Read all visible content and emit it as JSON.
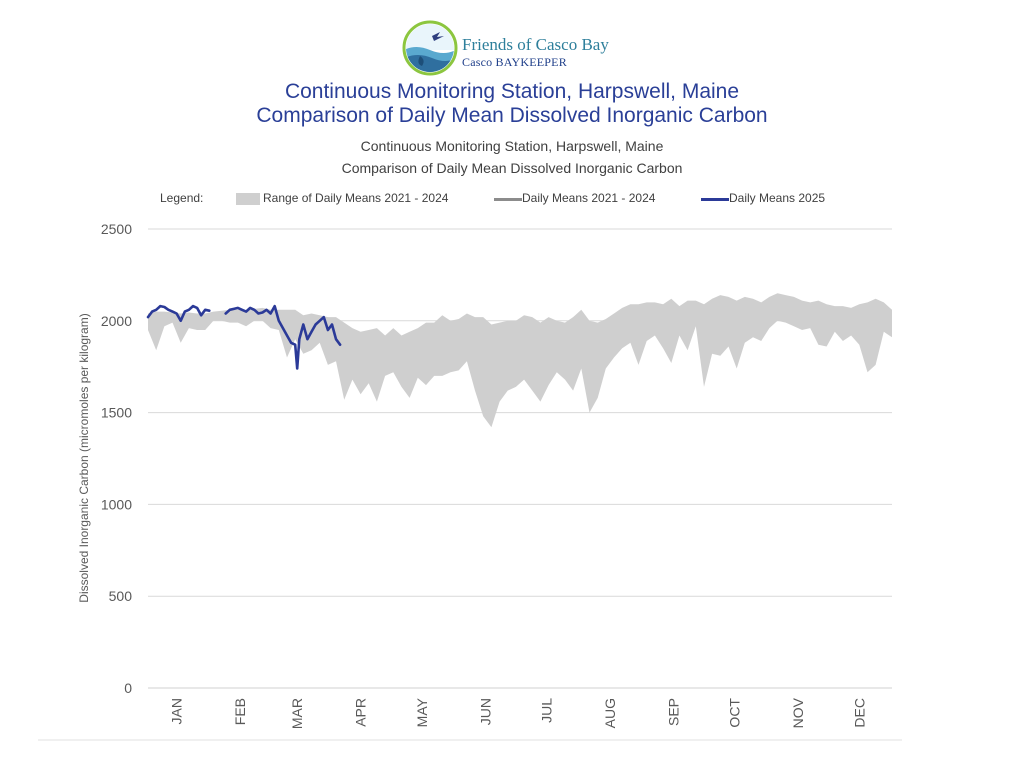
{
  "logo": {
    "org_name": "Friends of Casco Bay",
    "org_sub": "Casco BAYKEEPER"
  },
  "header": {
    "title_line1": "Continuous Monitoring Station, Harpswell, Maine",
    "title_line2": "Comparison of Daily Mean Dissolved Inorganic Carbon",
    "subtitle_line1": "Continuous Monitoring Station, Harpswell, Maine",
    "subtitle_line2": "Comparison of Daily Mean Dissolved Inorganic Carbon"
  },
  "colors": {
    "range_fill": "#cfcfcf",
    "mean_line": "#8c8c8c",
    "line_2025": "#2b3a98",
    "grid": "#d9d9d9",
    "title": "#2a3f97"
  },
  "chart_data": {
    "type": "area",
    "ylabel": "Dissolved Inorganic Carbon (micromoles per kilogram)",
    "xlabel": "",
    "ylim": [
      0,
      2500
    ],
    "yticks": [
      0,
      500,
      1000,
      1500,
      2000,
      2500
    ],
    "xlim": [
      "2025-01-01",
      "2025-12-31"
    ],
    "x_tick_labels": [
      "JAN",
      "FEB",
      "MAR",
      "APR",
      "MAY",
      "JUN",
      "JUL",
      "AUG",
      "SEP",
      "OCT",
      "NOV",
      "DEC"
    ],
    "x_tick_dates": [
      "2025-01-15",
      "2025-02-15",
      "2025-03-15",
      "2025-04-15",
      "2025-05-15",
      "2025-06-15",
      "2025-07-15",
      "2025-08-15",
      "2025-09-15",
      "2025-10-15",
      "2025-11-15",
      "2025-12-15"
    ],
    "grid": "horizontal",
    "legend": {
      "title": "Legend:",
      "placement": "top",
      "entries": [
        "Range of Daily Means 2021 - 2024",
        "Daily Means 2021 - 2024",
        "Daily Means 2025"
      ]
    },
    "series": [
      {
        "name": "Range of Daily Means 2021 - 2024",
        "kind": "band",
        "x": [
          "2025-01-01",
          "2025-01-05",
          "2025-01-09",
          "2025-01-13",
          "2025-01-17",
          "2025-01-21",
          "2025-01-25",
          "2025-01-29",
          "2025-02-02",
          "2025-02-06",
          "2025-02-10",
          "2025-02-14",
          "2025-02-18",
          "2025-02-22",
          "2025-02-26",
          "2025-03-02",
          "2025-03-06",
          "2025-03-10",
          "2025-03-14",
          "2025-03-18",
          "2025-03-22",
          "2025-03-26",
          "2025-03-30",
          "2025-04-03",
          "2025-04-07",
          "2025-04-11",
          "2025-04-15",
          "2025-04-19",
          "2025-04-23",
          "2025-04-27",
          "2025-05-01",
          "2025-05-05",
          "2025-05-09",
          "2025-05-13",
          "2025-05-17",
          "2025-05-21",
          "2025-05-25",
          "2025-05-29",
          "2025-06-02",
          "2025-06-06",
          "2025-06-10",
          "2025-06-14",
          "2025-06-18",
          "2025-06-22",
          "2025-06-26",
          "2025-06-30",
          "2025-07-04",
          "2025-07-08",
          "2025-07-12",
          "2025-07-16",
          "2025-07-20",
          "2025-07-24",
          "2025-07-28",
          "2025-08-01",
          "2025-08-05",
          "2025-08-09",
          "2025-08-13",
          "2025-08-17",
          "2025-08-21",
          "2025-08-25",
          "2025-08-29",
          "2025-09-02",
          "2025-09-06",
          "2025-09-10",
          "2025-09-14",
          "2025-09-18",
          "2025-09-22",
          "2025-09-26",
          "2025-09-30",
          "2025-10-04",
          "2025-10-08",
          "2025-10-12",
          "2025-10-16",
          "2025-10-20",
          "2025-10-24",
          "2025-10-28",
          "2025-11-01",
          "2025-11-05",
          "2025-11-09",
          "2025-11-13",
          "2025-11-17",
          "2025-11-21",
          "2025-11-25",
          "2025-11-29",
          "2025-12-03",
          "2025-12-07",
          "2025-12-11",
          "2025-12-15",
          "2025-12-19",
          "2025-12-23",
          "2025-12-27",
          "2025-12-31"
        ],
        "high": [
          2040,
          2050,
          2050,
          2045,
          2040,
          2045,
          2040,
          2040,
          2050,
          2055,
          2060,
          2060,
          2055,
          2065,
          2070,
          2060,
          2060,
          2060,
          2060,
          2030,
          2040,
          2030,
          2020,
          2020,
          1990,
          1960,
          1940,
          1950,
          1960,
          1920,
          1960,
          1920,
          1940,
          1960,
          1990,
          1990,
          2030,
          2000,
          2010,
          2040,
          2020,
          2020,
          1980,
          1990,
          2000,
          2000,
          2030,
          2020,
          1990,
          2020,
          2000,
          1990,
          2020,
          2060,
          2000,
          1990,
          2010,
          2040,
          2070,
          2090,
          2090,
          2100,
          2100,
          2090,
          2120,
          2080,
          2110,
          2110,
          2090,
          2120,
          2140,
          2130,
          2110,
          2130,
          2120,
          2100,
          2130,
          2150,
          2140,
          2130,
          2110,
          2100,
          2110,
          2090,
          2080,
          2080,
          2070,
          2090,
          2100,
          2120,
          2100,
          2060
        ],
        "low": [
          1950,
          1840,
          1970,
          1990,
          1880,
          1960,
          1950,
          1950,
          2000,
          2000,
          1990,
          1990,
          1970,
          2000,
          2000,
          1960,
          1950,
          1800,
          1900,
          1820,
          1840,
          1880,
          1760,
          1780,
          1570,
          1680,
          1600,
          1660,
          1560,
          1700,
          1720,
          1640,
          1580,
          1690,
          1650,
          1700,
          1700,
          1720,
          1730,
          1780,
          1620,
          1480,
          1420,
          1560,
          1620,
          1640,
          1680,
          1620,
          1560,
          1650,
          1720,
          1680,
          1620,
          1740,
          1500,
          1580,
          1740,
          1800,
          1850,
          1880,
          1760,
          1890,
          1920,
          1850,
          1770,
          1920,
          1840,
          1970,
          1640,
          1820,
          1810,
          1860,
          1740,
          1880,
          1910,
          1890,
          1960,
          2000,
          1990,
          1970,
          1950,
          1960,
          1870,
          1860,
          1940,
          1890,
          1920,
          1870,
          1720,
          1760,
          1940,
          1910
        ]
      },
      {
        "name": "Daily Means 2021 - 2024",
        "kind": "line",
        "x": [
          "2025-01-01",
          "2025-01-05",
          "2025-01-09",
          "2025-01-13",
          "2025-01-17",
          "2025-01-21",
          "2025-01-25",
          "2025-01-29",
          "2025-02-02",
          "2025-02-06",
          "2025-02-10",
          "2025-02-14",
          "2025-02-18",
          "2025-02-22",
          "2025-02-26",
          "2025-03-02",
          "2025-03-06",
          "2025-03-10",
          "2025-03-14",
          "2025-03-18",
          "2025-03-22",
          "2025-03-26",
          "2025-03-30",
          "2025-04-03",
          "2025-04-07",
          "2025-04-11",
          "2025-04-15",
          "2025-04-19",
          "2025-04-23",
          "2025-04-27",
          "2025-05-01",
          "2025-05-05",
          "2025-05-09",
          "2025-05-13",
          "2025-05-17",
          "2025-05-21",
          "2025-05-25",
          "2025-05-29",
          "2025-06-02",
          "2025-06-06",
          "2025-06-10",
          "2025-06-14",
          "2025-06-18",
          "2025-06-22",
          "2025-06-26",
          "2025-06-30",
          "2025-07-04",
          "2025-07-08",
          "2025-07-12",
          "2025-07-16",
          "2025-07-20",
          "2025-07-24",
          "2025-07-28",
          "2025-08-01",
          "2025-08-05",
          "2025-08-09",
          "2025-08-13",
          "2025-08-17",
          "2025-08-21",
          "2025-08-25",
          "2025-08-29",
          "2025-09-02",
          "2025-09-06",
          "2025-09-10",
          "2025-09-14",
          "2025-09-18",
          "2025-09-22",
          "2025-09-26",
          "2025-09-30",
          "2025-10-04",
          "2025-10-08",
          "2025-10-12",
          "2025-10-16",
          "2025-10-20",
          "2025-10-24",
          "2025-10-28",
          "2025-11-01",
          "2025-11-05",
          "2025-11-09",
          "2025-11-13",
          "2025-11-17",
          "2025-11-21",
          "2025-11-25",
          "2025-11-29",
          "2025-12-03",
          "2025-12-07",
          "2025-12-11",
          "2025-12-15",
          "2025-12-19",
          "2025-12-23",
          "2025-12-27",
          "2025-12-31"
        ],
        "y": [
          1990,
          1950,
          2020,
          2020,
          1960,
          2010,
          2010,
          2000,
          2030,
          2030,
          2020,
          2030,
          2020,
          2040,
          2040,
          2010,
          2020,
          1910,
          1970,
          1880,
          1920,
          1940,
          1880,
          1890,
          1720,
          1790,
          1760,
          1820,
          1720,
          1830,
          1830,
          1780,
          1760,
          1820,
          1800,
          1860,
          1880,
          1860,
          1870,
          1910,
          1850,
          1770,
          1780,
          1820,
          1830,
          1860,
          1880,
          1860,
          1830,
          1870,
          1870,
          1880,
          1930,
          1960,
          1900,
          1880,
          1920,
          1950,
          1960,
          1990,
          1940,
          1970,
          2020,
          2000,
          1960,
          2020,
          2000,
          2050,
          1940,
          2010,
          2030,
          2040,
          1990,
          2050,
          2040,
          2040,
          2060,
          2090,
          2080,
          2070,
          2060,
          2060,
          2040,
          2020,
          2040,
          2030,
          2020,
          2040,
          1980,
          1940,
          2030,
          2010
        ]
      },
      {
        "name": "Daily Means 2025",
        "kind": "line",
        "x": [
          "2025-01-01",
          "2025-01-03",
          "2025-01-05",
          "2025-01-07",
          "2025-01-09",
          "2025-01-11",
          "2025-01-13",
          "2025-01-15",
          "2025-01-17",
          "2025-01-19",
          "2025-01-21",
          "2025-01-23",
          "2025-01-25",
          "2025-01-27",
          "2025-01-29",
          "2025-01-31",
          "2025-02-08",
          "2025-02-10",
          "2025-02-12",
          "2025-02-14",
          "2025-02-16",
          "2025-02-18",
          "2025-02-20",
          "2025-02-22",
          "2025-02-24",
          "2025-02-26",
          "2025-02-28",
          "2025-03-02",
          "2025-03-04",
          "2025-03-06",
          "2025-03-08",
          "2025-03-10",
          "2025-03-12",
          "2025-03-14",
          "2025-03-15",
          "2025-03-16",
          "2025-03-18",
          "2025-03-20",
          "2025-03-22",
          "2025-03-24",
          "2025-03-26",
          "2025-03-28",
          "2025-03-30",
          "2025-04-01",
          "2025-04-03",
          "2025-04-05"
        ],
        "y": [
          2020,
          2050,
          2060,
          2080,
          2075,
          2060,
          2050,
          2040,
          2000,
          2050,
          2060,
          2080,
          2070,
          2030,
          2060,
          2055,
          2040,
          2060,
          2065,
          2070,
          2060,
          2050,
          2070,
          2060,
          2040,
          2045,
          2060,
          2040,
          2080,
          2000,
          1960,
          1920,
          1880,
          1870,
          1740,
          1900,
          1980,
          1900,
          1940,
          1980,
          2000,
          2020,
          1950,
          1980,
          1900,
          1870
        ]
      }
    ]
  }
}
